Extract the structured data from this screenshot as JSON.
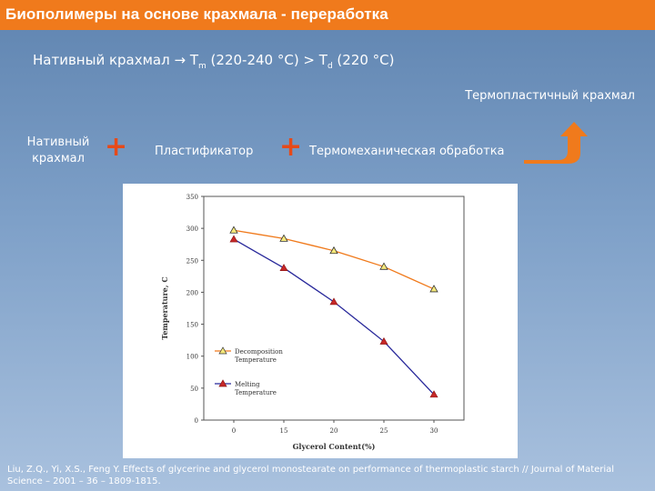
{
  "slide": {
    "title": "Биополимеры на основе крахмала - переработка",
    "subtitle": {
      "prefix": "Нативный крахмал ",
      "arrow": "→",
      "tm": " T",
      "tm_sub": "m",
      "tm_range": " (220-240 °C) > T",
      "td_sub": "d",
      "td_value": " (220 °C)"
    },
    "thermoplastic_label": "Термопластичный крахмал",
    "native_starch_label_line1": "Нативный",
    "native_starch_label_line2": "крахмал",
    "plus_symbol": "+",
    "plasticizer_label": "Пластификатор",
    "thermomech_label": "Термомеханическая обработка",
    "citation": "Liu, Z.Q., Yi, X.S., Feng Y. Effects of glycerine and glycerol monostearate on performance of thermoplastic starch // Journal of Material Science – 2001 – 36 – 1809-1815.",
    "colors": {
      "title_bar": "#f07a1c",
      "plus": "#e64a19",
      "arrow": "#f07a1c",
      "decomposition_series": "#f07a1c",
      "melting_series": "#27279a"
    },
    "icons": [
      "arrow-up-right-icon"
    ]
  },
  "chart_data": {
    "type": "line",
    "xlabel": "Glycerol Content(%)",
    "ylabel": "Temperature, C",
    "categories": [
      "0",
      "15",
      "20",
      "25",
      "30"
    ],
    "ylim": [
      0,
      350
    ],
    "yticks": [
      "0",
      "50",
      "100",
      "150",
      "200",
      "250",
      "300",
      "350"
    ],
    "series": [
      {
        "name": "Decomposition Temperature",
        "marker": "triangle-open",
        "values": [
          297,
          284,
          265,
          240,
          205
        ]
      },
      {
        "name": "Melting Temperature",
        "marker": "triangle-filled",
        "values": [
          283,
          238,
          185,
          123,
          40
        ]
      }
    ],
    "legend": "bottom-left",
    "grid": false
  }
}
